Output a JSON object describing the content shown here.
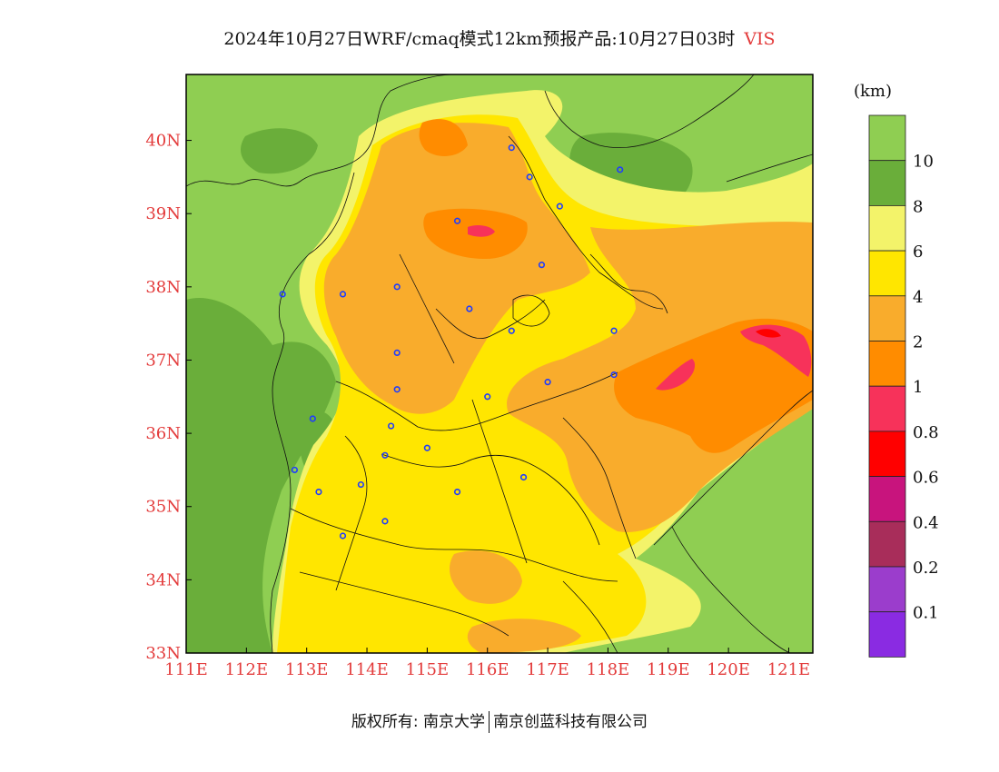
{
  "title": {
    "main": "2024年10月27日WRF/cmaq模式12km预报产品:10月27日03时",
    "variable": "VIS"
  },
  "legend": {
    "unit": "(km)",
    "labels": [
      "10",
      "8",
      "6",
      "4",
      "2",
      "1",
      "0.8",
      "0.6",
      "0.4",
      "0.2",
      "0.1"
    ],
    "colors": [
      "#8fce52",
      "#6aae3a",
      "#f3f36a",
      "#ffe600",
      "#f9ac2c",
      "#ff8c00",
      "#f7325a",
      "#ff0000",
      "#c8147d",
      "#a82d5a",
      "#9b3dcc",
      "#8a2be2"
    ]
  },
  "axes": {
    "x_ticks": [
      "111E",
      "112E",
      "113E",
      "114E",
      "115E",
      "116E",
      "117E",
      "118E",
      "119E",
      "120E",
      "121E"
    ],
    "y_ticks": [
      "40N",
      "39N",
      "38N",
      "37N",
      "36N",
      "35N",
      "34N",
      "33N"
    ],
    "lon_range": [
      111,
      121.4
    ],
    "lat_range": [
      33,
      40.9
    ],
    "tick_color": "#e33b3b"
  },
  "footer": {
    "left": "版权所有: 南京大学",
    "right": "南京创蓝科技有限公司"
  },
  "cities": [
    [
      116.4,
      39.9
    ],
    [
      116.7,
      39.5
    ],
    [
      117.2,
      39.1
    ],
    [
      118.2,
      39.6
    ],
    [
      115.5,
      38.9
    ],
    [
      116.9,
      38.3
    ],
    [
      112.6,
      37.9
    ],
    [
      113.6,
      37.9
    ],
    [
      114.5,
      38.0
    ],
    [
      115.7,
      37.7
    ],
    [
      116.4,
      37.4
    ],
    [
      114.5,
      37.1
    ],
    [
      114.5,
      36.6
    ],
    [
      117.0,
      36.7
    ],
    [
      118.1,
      37.4
    ],
    [
      118.1,
      36.8
    ],
    [
      116.0,
      36.5
    ],
    [
      114.4,
      36.1
    ],
    [
      113.1,
      36.2
    ],
    [
      115.0,
      35.8
    ],
    [
      114.3,
      35.7
    ],
    [
      112.8,
      35.5
    ],
    [
      113.2,
      35.2
    ],
    [
      113.9,
      35.3
    ],
    [
      115.5,
      35.2
    ],
    [
      116.6,
      35.4
    ],
    [
      114.3,
      34.8
    ],
    [
      113.6,
      34.6
    ]
  ]
}
